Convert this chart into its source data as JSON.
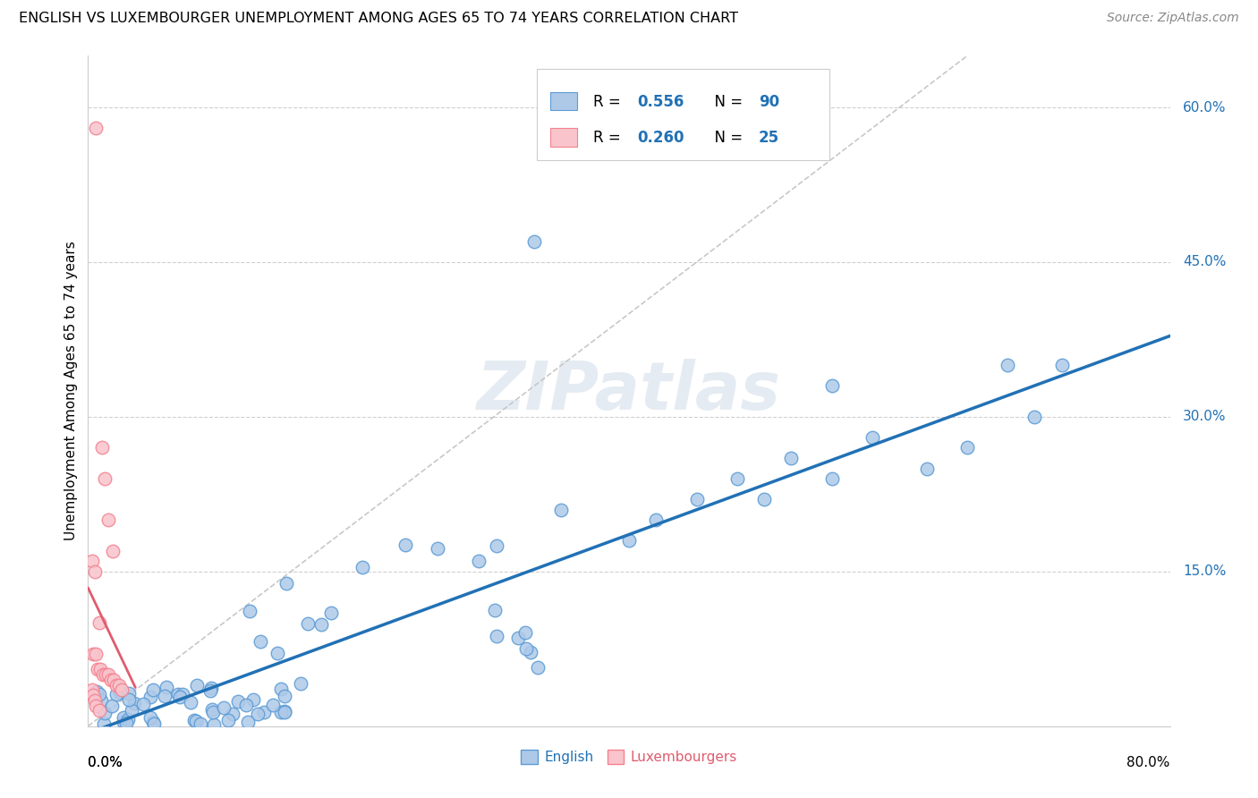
{
  "title": "ENGLISH VS LUXEMBOURGER UNEMPLOYMENT AMONG AGES 65 TO 74 YEARS CORRELATION CHART",
  "source": "Source: ZipAtlas.com",
  "ylabel": "Unemployment Among Ages 65 to 74 years",
  "legend_english": "English",
  "legend_luxembourgers": "Luxembourgers",
  "R_english": 0.556,
  "N_english": 90,
  "R_luxembourgers": 0.26,
  "N_luxembourgers": 25,
  "english_color": "#aec9e8",
  "luxembourger_color": "#f9c4cc",
  "english_edge_color": "#5b9bd5",
  "luxembourger_edge_color": "#f4818f",
  "english_line_color": "#2171b5",
  "luxembourger_line_color": "#e05c6e",
  "watermark": "ZIPatlas",
  "xlim": [
    0.0,
    0.8
  ],
  "ylim": [
    0.0,
    0.65
  ],
  "right_ytick_vals": [
    0.15,
    0.3,
    0.45,
    0.6
  ],
  "right_ytick_labels": [
    "15.0%",
    "30.0%",
    "45.0%",
    "60.0%"
  ],
  "eng_seed": 42,
  "lux_seed": 7
}
